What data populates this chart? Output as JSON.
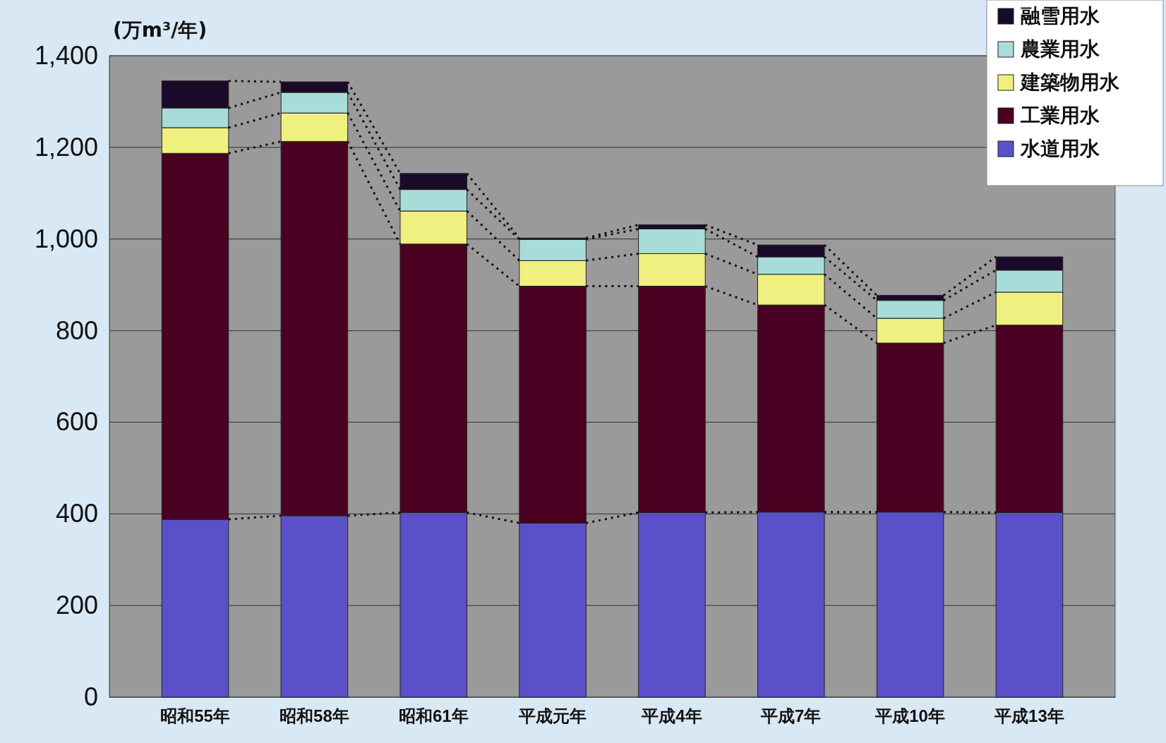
{
  "chart_data": {
    "type": "bar",
    "stacked": true,
    "ylabel": "(万m³/年)",
    "categories": [
      "昭和55年",
      "昭和58年",
      "昭和61年",
      "平成元年",
      "平成4年",
      "平成7年",
      "平成10年",
      "平成13年"
    ],
    "series": [
      {
        "name": "水道用水",
        "color": "#5a50c8",
        "values": [
          388,
          396,
          403,
          380,
          403,
          404,
          404,
          403
        ]
      },
      {
        "name": "工業用水",
        "color": "#4a0020",
        "values": [
          799,
          817,
          586,
          517,
          494,
          452,
          369,
          409
        ]
      },
      {
        "name": "建築物用水",
        "color": "#f0f080",
        "values": [
          56,
          62,
          72,
          56,
          71,
          67,
          54,
          72
        ]
      },
      {
        "name": "農業用水",
        "color": "#a8dcd8",
        "values": [
          43,
          45,
          47,
          46,
          54,
          38,
          39,
          48
        ]
      },
      {
        "name": "融雪用水",
        "color": "#1a0a2a",
        "values": [
          59,
          23,
          35,
          3,
          9,
          26,
          11,
          29
        ]
      }
    ],
    "ylim": [
      0,
      1400
    ],
    "yticks": [
      0,
      200,
      400,
      600,
      800,
      {
        "value": 1000,
        "label": "1,000"
      },
      {
        "value": 1200,
        "label": "1,200"
      },
      {
        "value": 1400,
        "label": "1,400"
      }
    ],
    "grid": "y",
    "legend": "top right"
  }
}
